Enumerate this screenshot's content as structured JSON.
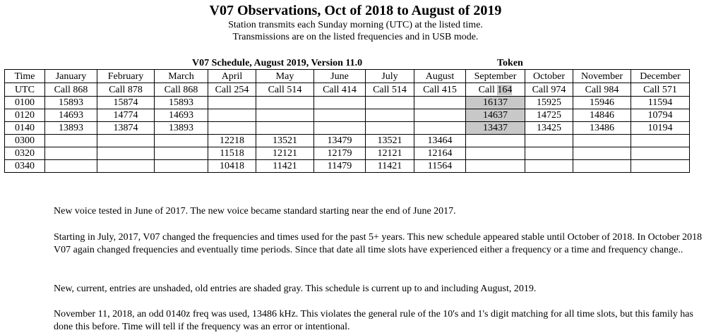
{
  "header": {
    "title": "V07 Observations, Oct of 2018 to August of 2019",
    "line1": "Station transmits each Sunday morning (UTC) at the listed time.",
    "line2": "Transmissions are on the listed frequencies and in USB mode."
  },
  "schedule_title": "V07 Schedule, August 2019, Version 11.0",
  "token_label": "Token",
  "table": {
    "time_header": [
      "Time",
      "UTC"
    ],
    "months": [
      {
        "name": "January",
        "call_prefix": "Call",
        "call_num": "868"
      },
      {
        "name": "February",
        "call_prefix": "Call",
        "call_num": "878"
      },
      {
        "name": "March",
        "call_prefix": "Call",
        "call_num": "868"
      },
      {
        "name": "April",
        "call_prefix": "Call",
        "call_num": "254"
      },
      {
        "name": "May",
        "call_prefix": "Call",
        "call_num": "514"
      },
      {
        "name": "June",
        "call_prefix": "Call",
        "call_num": "414"
      },
      {
        "name": "July",
        "call_prefix": "Call",
        "call_num": "514"
      },
      {
        "name": "August",
        "call_prefix": "Call",
        "call_num": "415"
      },
      {
        "name": "September",
        "call_prefix": "Call",
        "call_num": "164"
      },
      {
        "name": "October",
        "call_prefix": "Call",
        "call_num": "974"
      },
      {
        "name": "November",
        "call_prefix": "Call",
        "call_num": "984"
      },
      {
        "name": "December",
        "call_prefix": "Call",
        "call_num": "571"
      }
    ],
    "rows": [
      {
        "time": "0100",
        "cells": [
          "15893",
          "15874",
          "15893",
          "",
          "",
          "",
          "",
          "",
          "16137",
          "15925",
          "15946",
          "11594"
        ]
      },
      {
        "time": "0120",
        "cells": [
          "14693",
          "14774",
          "14693",
          "",
          "",
          "",
          "",
          "",
          "14637",
          "14725",
          "14846",
          "10794"
        ]
      },
      {
        "time": "0140",
        "cells": [
          "13893",
          "13874",
          "13893",
          "",
          "",
          "",
          "",
          "",
          "13437",
          "13425",
          "13486",
          "10194"
        ]
      },
      {
        "time": "0300",
        "cells": [
          "",
          "",
          "",
          "12218",
          "13521",
          "13479",
          "13521",
          "13464",
          "",
          "",
          "",
          ""
        ]
      },
      {
        "time": "0320",
        "cells": [
          "",
          "",
          "",
          "11518",
          "12121",
          "12179",
          "12121",
          "12164",
          "",
          "",
          "",
          ""
        ]
      },
      {
        "time": "0340",
        "cells": [
          "",
          "",
          "",
          "10418",
          "11421",
          "11479",
          "11421",
          "11564",
          "",
          "",
          "",
          ""
        ]
      }
    ],
    "shade_color": "#c8c8c8"
  },
  "notes": [
    "New voice tested in June of 2017.  The new voice became standard starting near the end of June 2017.",
    "Starting in July, 2017, V07 changed the frequencies and times used for the past 5+ years.  This new schedule appeared stable until October of 2018.  In October 2018 V07 again changed frequencies and eventually time periods.  Since that date all time slots have experienced either a frequency or a time and frequency change..",
    "New, current, entries are unshaded, old entries are shaded gray.  This schedule is current up to and including August, 2019.",
    "November 11, 2018, an odd 0140z freq was used, 13486 kHz.  This violates the general rule of the 10's and 1's digit matching for all time slots, but this family has done this before.  Time will tell if the frequency was an error or intentional."
  ]
}
